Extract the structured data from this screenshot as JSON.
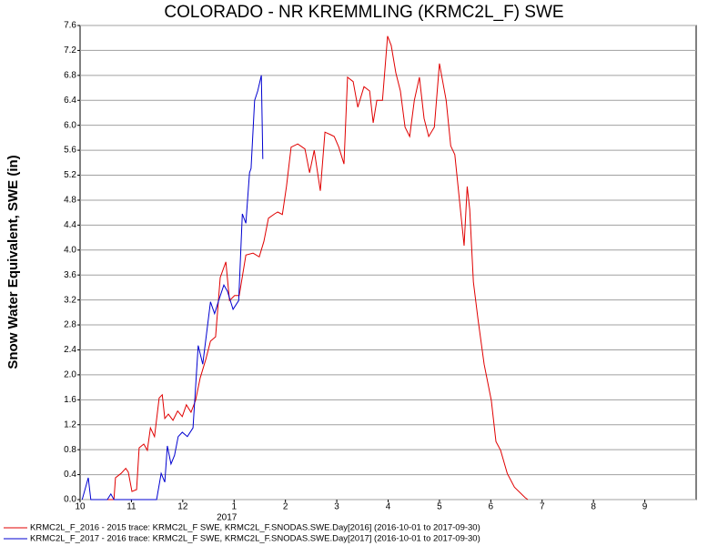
{
  "chart_data": {
    "type": "line",
    "title": "COLORADO - NR KREMMLING (KRMC2L_F) SWE",
    "y_label": "Snow Water Equivalent, SWE (in)",
    "year_label": "2017",
    "xlim": [
      0,
      12
    ],
    "xticks": [
      {
        "value": 0,
        "label": "10"
      },
      {
        "value": 1,
        "label": "11"
      },
      {
        "value": 2,
        "label": "12"
      },
      {
        "value": 3,
        "label": "1"
      },
      {
        "value": 4,
        "label": "2"
      },
      {
        "value": 5,
        "label": "3"
      },
      {
        "value": 6,
        "label": "4"
      },
      {
        "value": 7,
        "label": "5"
      },
      {
        "value": 8,
        "label": "6"
      },
      {
        "value": 9,
        "label": "7"
      },
      {
        "value": 10,
        "label": "8"
      },
      {
        "value": 11,
        "label": "9"
      }
    ],
    "ylim": [
      0,
      7.6
    ],
    "yticks": [
      {
        "value": 0,
        "label": "0.0"
      },
      0.4,
      0.8,
      1.2,
      1.6,
      {
        "value": 2,
        "label": "2.0"
      },
      2.4,
      2.8,
      3.2,
      3.6,
      {
        "value": 4,
        "label": "4.0"
      },
      4.4,
      4.8,
      5.2,
      5.6,
      {
        "value": 6,
        "label": "6.0"
      },
      6.4,
      6.8,
      7.2,
      7.6
    ],
    "grid": true,
    "series": [
      {
        "name": "KRMC2L_F_2016 - 2015 trace: KRMC2L_F SWE, KRMC2L_F.SNODAS.SWE.Day[2016] (2016-10-01 to 2017-09-30)",
        "color": "#e00000",
        "x": [
          0.21,
          0.66,
          0.69,
          0.8,
          0.89,
          0.94,
          1.01,
          1.1,
          1.15,
          1.24,
          1.31,
          1.37,
          1.45,
          1.54,
          1.6,
          1.65,
          1.72,
          1.81,
          1.9,
          1.99,
          2.07,
          2.16,
          2.25,
          2.34,
          2.45,
          2.54,
          2.64,
          2.73,
          2.84,
          2.91,
          3.01,
          3.1,
          3.23,
          3.37,
          3.49,
          3.58,
          3.67,
          3.79,
          3.85,
          3.94,
          4.02,
          4.11,
          4.24,
          4.38,
          4.47,
          4.56,
          4.68,
          4.77,
          4.88,
          4.95,
          5.04,
          5.14,
          5.21,
          5.32,
          5.41,
          5.53,
          5.64,
          5.71,
          5.78,
          5.89,
          5.99,
          6.06,
          6.15,
          6.24,
          6.33,
          6.42,
          6.51,
          6.61,
          6.7,
          6.79,
          6.9,
          7.0,
          7.13,
          7.22,
          7.3,
          7.39,
          7.48,
          7.54,
          7.59,
          7.66,
          7.75,
          7.87,
          8.01,
          8.1,
          8.19,
          8.32,
          8.46,
          8.67,
          8.72
        ],
        "values": [
          0,
          0,
          0.35,
          0.42,
          0.5,
          0.44,
          0.13,
          0.16,
          0.83,
          0.89,
          0.79,
          1.15,
          1.01,
          1.63,
          1.68,
          1.3,
          1.37,
          1.27,
          1.42,
          1.33,
          1.52,
          1.4,
          1.59,
          1.95,
          2.25,
          2.54,
          2.61,
          3.56,
          3.81,
          3.19,
          3.27,
          3.27,
          3.92,
          3.95,
          3.89,
          4.14,
          4.51,
          4.58,
          4.61,
          4.57,
          5.02,
          5.65,
          5.7,
          5.62,
          5.24,
          5.6,
          4.95,
          5.89,
          5.85,
          5.82,
          5.65,
          5.38,
          6.77,
          6.7,
          6.29,
          6.62,
          6.55,
          6.04,
          6.4,
          6.4,
          7.43,
          7.28,
          6.84,
          6.55,
          5.97,
          5.82,
          6.4,
          6.77,
          6.11,
          5.82,
          5.97,
          6.99,
          6.4,
          5.67,
          5.53,
          4.8,
          4.07,
          5.02,
          4.65,
          3.49,
          2.9,
          2.17,
          1.59,
          0.93,
          0.79,
          0.42,
          0.2,
          0.03,
          0
        ]
      },
      {
        "name": "KRMC2L_F_2017 - 2016 trace: KRMC2L_F SWE, KRMC2L_F.SNODAS.SWE.Day[2017] (2016-10-01 to 2017-09-30)",
        "color": "#0000d0",
        "x": [
          0.04,
          0.16,
          0.21,
          0.53,
          0.6,
          0.66,
          1.49,
          1.58,
          1.65,
          1.7,
          1.77,
          1.84,
          1.91,
          1.99,
          2.09,
          2.2,
          2.3,
          2.39,
          2.54,
          2.62,
          2.7,
          2.8,
          2.87,
          2.98,
          3.09,
          3.16,
          3.23,
          3.3,
          3.33,
          3.4,
          3.46,
          3.53,
          3.56
        ],
        "values": [
          0,
          0.35,
          0,
          0,
          0.09,
          0,
          0,
          0.42,
          0.28,
          0.86,
          0.57,
          0.71,
          1.01,
          1.08,
          1.01,
          1.15,
          2.47,
          2.17,
          3.17,
          2.98,
          3.19,
          3.44,
          3.34,
          3.05,
          3.19,
          4.58,
          4.43,
          5.24,
          5.31,
          6.4,
          6.55,
          6.8,
          5.46
        ]
      }
    ]
  }
}
